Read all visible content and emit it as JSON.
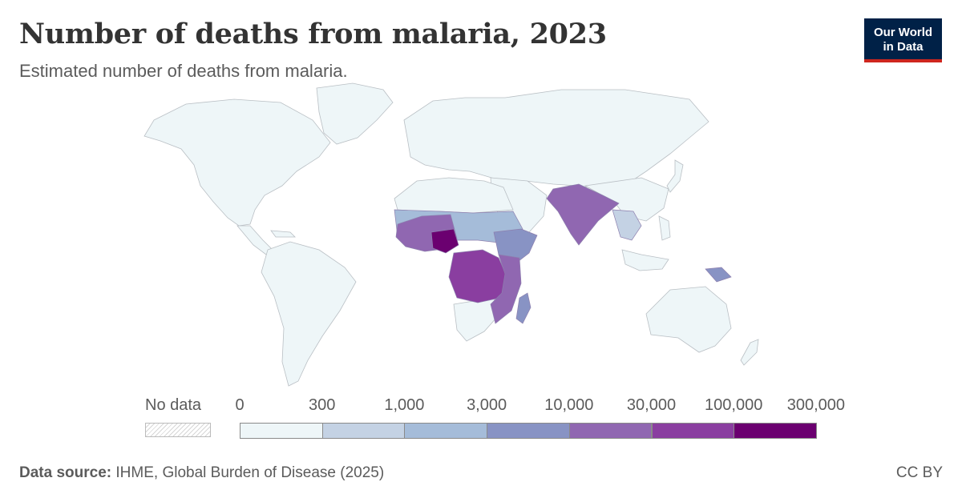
{
  "header": {
    "title": "Number of deaths from malaria, 2023",
    "subtitle": "Estimated number of deaths from malaria."
  },
  "logo": {
    "line1": "Our World",
    "line2": "in Data",
    "bg_color": "#002147",
    "accent_color": "#ce261e"
  },
  "legend": {
    "no_data_label": "No data",
    "ticks": [
      "0",
      "300",
      "1,000",
      "3,000",
      "10,000",
      "30,000",
      "100,000",
      "300,000"
    ],
    "bins": [
      {
        "from": 0,
        "to": 300,
        "color": "#eef6f8"
      },
      {
        "from": 300,
        "to": 1000,
        "color": "#c4d2e4"
      },
      {
        "from": 1000,
        "to": 3000,
        "color": "#a5bcd9"
      },
      {
        "from": 3000,
        "to": 10000,
        "color": "#8893c4"
      },
      {
        "from": 10000,
        "to": 30000,
        "color": "#9067b1"
      },
      {
        "from": 30000,
        "to": 100000,
        "color": "#8a3ea0"
      },
      {
        "from": 100000,
        "to": 300000,
        "color": "#6b0070"
      }
    ]
  },
  "footer": {
    "source_label": "Data source:",
    "source_text": "IHME, Global Burden of Disease (2025)",
    "license": "CC BY"
  }
}
